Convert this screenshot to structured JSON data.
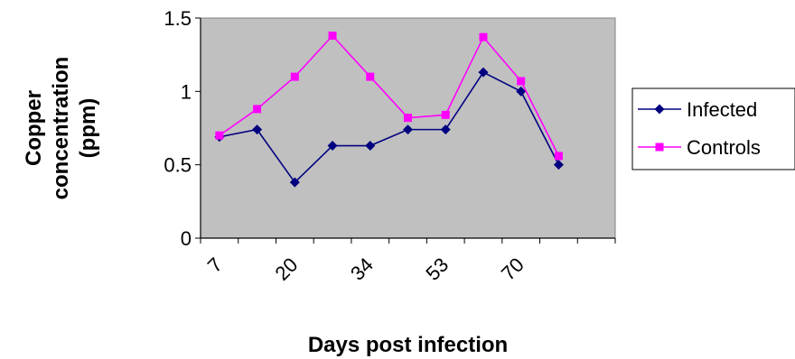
{
  "chart_data": {
    "type": "line",
    "title": "",
    "xlabel": "Days post infection",
    "ylabel_lines": [
      "Copper",
      "concentration",
      "(ppm)"
    ],
    "x_tick_labels": [
      "7",
      "",
      "20",
      "",
      "34",
      "",
      "53",
      "",
      "70",
      "",
      ""
    ],
    "ylim": [
      0,
      1.5
    ],
    "y_ticks": [
      0,
      0.5,
      1,
      1.5
    ],
    "y_tick_labels": [
      "0",
      "0.5",
      "1",
      "1.5"
    ],
    "grid": false,
    "legend_position": "right",
    "series": [
      {
        "name": "Infected",
        "color": "#000080",
        "marker": "diamond",
        "values": [
          0.69,
          0.74,
          0.38,
          0.63,
          0.63,
          0.74,
          0.74,
          1.13,
          1.0,
          0.5
        ]
      },
      {
        "name": "Controls",
        "color": "#FF00FF",
        "marker": "square",
        "values": [
          0.7,
          0.88,
          1.1,
          1.38,
          1.1,
          0.82,
          0.84,
          1.37,
          1.07,
          0.56
        ]
      }
    ],
    "colors": {
      "plot_background": "#C0C0C0",
      "plot_border": "#808080",
      "axis": "#000000"
    }
  }
}
